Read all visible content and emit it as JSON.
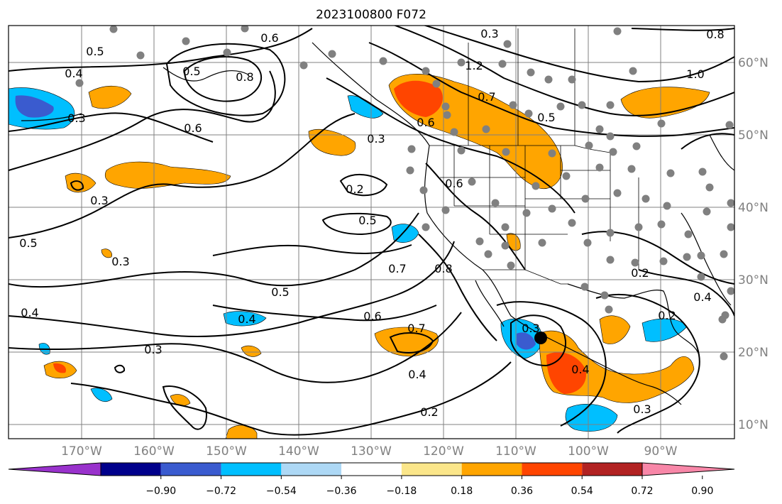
{
  "title": "2023100800 F072",
  "map": {
    "lon_ticks": [
      "170°W",
      "160°W",
      "150°W",
      "140°W",
      "130°W",
      "120°W",
      "110°W",
      "100°W",
      "90°W"
    ],
    "lat_ticks": [
      "60°N",
      "50°N",
      "40°N",
      "30°N",
      "20°N",
      "10°N"
    ],
    "grid": true,
    "contour_labels": [
      "0.5",
      "0.4",
      "0.3",
      "0.6",
      "0.8",
      "0.5",
      "0.6",
      "0.3",
      "1.2",
      "0.8",
      "1.0",
      "0.7",
      "0.5",
      "0.6",
      "0.3",
      "0.6",
      "0.2",
      "0.3",
      "0.5",
      "0.5",
      "0.3",
      "0.7",
      "0.8",
      "0.2",
      "0.5",
      "0.4",
      "0.6",
      "0.7",
      "0.4",
      "0.3",
      "0.4",
      "0.3",
      "0.4",
      "0.2",
      "0.2",
      "0.3",
      "0.4"
    ],
    "colors": {
      "contour": "#000000",
      "station_dot": "#808080",
      "grid": "#808080",
      "coast": "#000000",
      "marker": "#000000"
    },
    "marker": "filled-circle"
  },
  "colorbar": {
    "ticks": [
      "−0.90",
      "−0.72",
      "−0.54",
      "−0.36",
      "−0.18",
      "0.18",
      "0.36",
      "0.54",
      "0.72",
      "0.90"
    ],
    "colors": [
      "#9932cc",
      "#00008b",
      "#3a5bcf",
      "#00bfff",
      "#add8f5",
      "#ffffff",
      "#fbe68a",
      "#ffa500",
      "#ff4500",
      "#b22222",
      "#f887a8"
    ],
    "extend": "both"
  }
}
